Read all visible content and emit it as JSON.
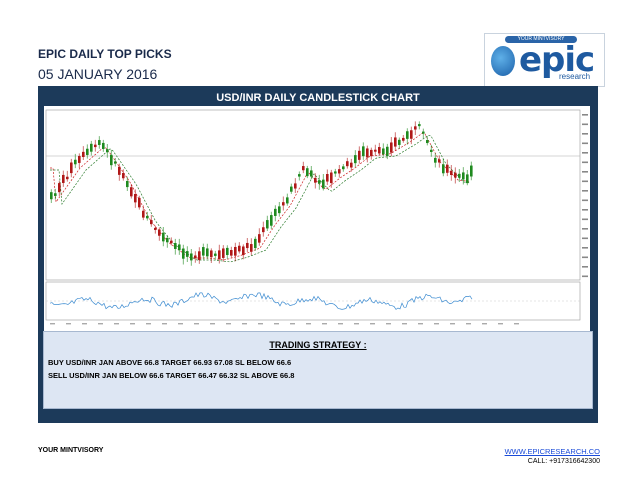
{
  "header": {
    "title": "EPIC DAILY TOP PICKS",
    "date": "05 JANUARY 2016"
  },
  "logo": {
    "tagline": "YOUR MINTVISORY",
    "word": "epic",
    "sub": "research"
  },
  "chart": {
    "title": "USD/INR DAILY CANDLESTICK CHART"
  },
  "strategy": {
    "title": "TRADING STRATEGY :",
    "buy": "BUY USD/INR JAN ABOVE 66.8 TARGET 66.93 67.08 SL BELOW 66.6",
    "sell": "SELL USD/INR JAN BELOW 66.6 TARGET 66.47 66.32 SL ABOVE 66.8"
  },
  "footer": {
    "tagline": "YOUR MINTVISORY",
    "website": "WWW.EPICRESEARCH.CO",
    "call": "CALL: +917316642300"
  },
  "colors": {
    "panel": "#1c3a5a",
    "bull_candle": "#1f8a1f",
    "bear_candle": "#b01818",
    "strategy_bg": "#dde6f3",
    "link": "#1a4bd8"
  }
}
